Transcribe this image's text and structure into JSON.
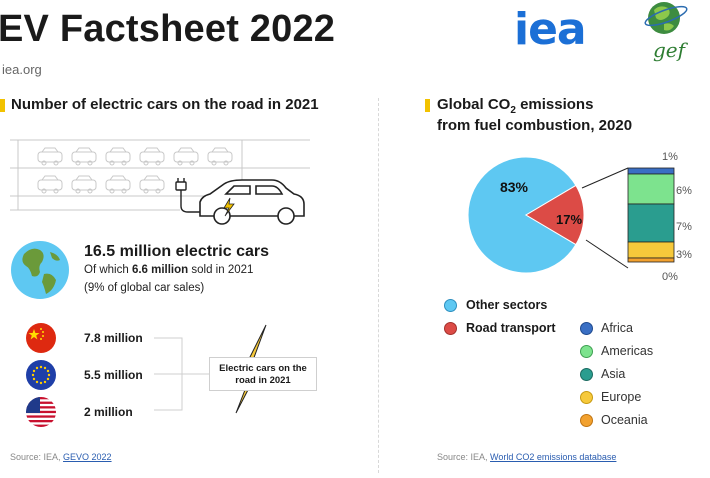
{
  "header": {
    "title": "EV Factsheet 2022",
    "website": "iea.org",
    "logos": {
      "iea": "iea",
      "gef": "gef"
    }
  },
  "left": {
    "section_title": "Number of electric cars on the road in 2021",
    "total": "16.5 million electric cars",
    "sub_prefix": "Of which ",
    "sub_bold": "6.6 million",
    "sub_suffix": " sold in 2021",
    "sub_line2": "(9% of global car sales)",
    "countries": [
      {
        "flag_icon": "china-flag-icon",
        "value": "7.8 million"
      },
      {
        "flag_icon": "eu-flag-icon",
        "value": "5.5 million"
      },
      {
        "flag_icon": "usa-flag-icon",
        "value": "2 million"
      }
    ],
    "callout_line1": "Electric cars on the",
    "callout_line2": "road in 2021",
    "source_prefix": "Source: IEA, ",
    "source_link": "GEVO 2022"
  },
  "right": {
    "section_title_line1_a": "Global CO",
    "section_title_sub": "2",
    "section_title_line1_b": " emissions",
    "section_title_line2": "from fuel combustion, 2020",
    "source_prefix": "Source: IEA, ",
    "source_link": "World CO2 emissions database"
  },
  "chart_data": {
    "type": "pie",
    "slices": [
      {
        "label": "Other sectors",
        "value": 83,
        "text": "83%",
        "color": "#5ec8f2"
      },
      {
        "label": "Road transport",
        "value": 17,
        "text": "17%",
        "color": "#dc4b46"
      }
    ],
    "breakdown_of": "Road transport",
    "breakdown_type": "stacked-bar",
    "breakdown": [
      {
        "label": "Africa",
        "text": "1%",
        "color": "#3a6fc4"
      },
      {
        "label": "Americas",
        "text": "6%",
        "color": "#7de38e"
      },
      {
        "label": "Asia",
        "text": "7%",
        "color": "#2a9d8f"
      },
      {
        "label": "Europe",
        "text": "3%",
        "color": "#f6c93b"
      },
      {
        "label": "Oceania",
        "text": "0%",
        "color": "#f2a12e"
      }
    ],
    "legend": [
      "Other sectors",
      "Road transport"
    ]
  }
}
